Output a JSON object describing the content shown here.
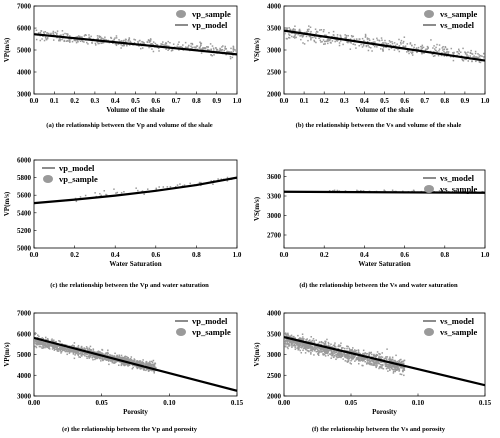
{
  "chart_data": [
    {
      "id": "a",
      "type": "scatter",
      "caption": "(a) the relationship between the Vp and  volume of the shale",
      "xlabel": "Volume of the shale",
      "ylabel": "VP(m/s)",
      "xlim": [
        0,
        1.0
      ],
      "ylim": [
        3000,
        7000
      ],
      "xticks": [
        "0.0",
        "0.1",
        "0.2",
        "0.3",
        "0.4",
        "0.5",
        "0.6",
        "0.7",
        "0.8",
        "0.9",
        "1.0"
      ],
      "yticks": [
        "3000",
        "4000",
        "5000",
        "6000",
        "7000"
      ],
      "legend": {
        "position": "top-right",
        "order": [
          "sample",
          "model"
        ]
      },
      "series": [
        {
          "name": "vp_sample",
          "kind": "scatter",
          "color": "#9a9a9a",
          "x_range": [
            0,
            1.0
          ],
          "trend": [
            [
              0,
              5700
            ],
            [
              1.0,
              4920
            ]
          ],
          "spread": 230,
          "count": 460
        },
        {
          "name": "vp_model",
          "kind": "line",
          "color": "#000000",
          "points": [
            [
              0,
              5720
            ],
            [
              1.0,
              4800
            ]
          ]
        }
      ]
    },
    {
      "id": "b",
      "type": "scatter",
      "caption": "(b) the relationship between the Vs and  volume of the shale",
      "xlabel": "Volume of the shale",
      "ylabel": "VS(m/s)",
      "xlim": [
        0,
        1.0
      ],
      "ylim": [
        2000,
        4000
      ],
      "xticks": [
        "0.0",
        "0.1",
        "0.2",
        "0.3",
        "0.4",
        "0.5",
        "0.6",
        "0.7",
        "0.8",
        "0.9",
        "1.0"
      ],
      "yticks": [
        "2000",
        "2500",
        "3000",
        "3500",
        "4000"
      ],
      "legend": {
        "position": "top-right",
        "order": [
          "sample",
          "model"
        ]
      },
      "series": [
        {
          "name": "vs_sample",
          "kind": "scatter",
          "color": "#9a9a9a",
          "x_range": [
            0,
            1.0
          ],
          "trend": [
            [
              0,
              3420
            ],
            [
              1.0,
              2830
            ]
          ],
          "spread": 150,
          "count": 460
        },
        {
          "name": "vs_model",
          "kind": "line",
          "color": "#000000",
          "points": [
            [
              0,
              3440
            ],
            [
              1.0,
              2760
            ]
          ]
        }
      ]
    },
    {
      "id": "c",
      "type": "scatter",
      "caption": "(c) the relationship between the Vp and  water saturation",
      "xlabel": "Water Saturation",
      "ylabel": "VP(m/s)",
      "xlim": [
        0,
        1.0
      ],
      "ylim": [
        5000,
        6000
      ],
      "xticks": [
        "0.0",
        "0.2",
        "0.4",
        "0.6",
        "0.8",
        "1.0"
      ],
      "yticks": [
        "5000",
        "5200",
        "5400",
        "5600",
        "5800",
        "6000"
      ],
      "legend": {
        "position": "top-left",
        "order": [
          "model",
          "sample"
        ]
      },
      "series": [
        {
          "name": "vp_model",
          "kind": "curve",
          "color": "#000000",
          "points": [
            [
              0,
              5510
            ],
            [
              0.2,
              5550
            ],
            [
              0.4,
              5595
            ],
            [
              0.6,
              5650
            ],
            [
              0.8,
              5715
            ],
            [
              1.0,
              5800
            ]
          ]
        },
        {
          "name": "vp_sample",
          "kind": "scatter",
          "color": "#9a9a9a",
          "x_range": [
            0.2,
            1.0
          ],
          "trend": [
            [
              0.2,
              5560
            ],
            [
              1.0,
              5790
            ]
          ],
          "spread": 35,
          "count": 55
        }
      ]
    },
    {
      "id": "d",
      "type": "scatter",
      "caption": "(d) the relationship between the Vs and  water saturation",
      "xlabel": "Water Saturation",
      "ylabel": "VS(m/s)",
      "xlim": [
        0,
        1.0
      ],
      "ylim": [
        2500,
        3700
      ],
      "xticks": [
        "0.0",
        "0.2",
        "0.4",
        "0.6",
        "0.8",
        "1.0"
      ],
      "yticks": [
        "2700",
        "3000",
        "3300",
        "3600"
      ],
      "legend": {
        "position": "top-right",
        "order": [
          "model",
          "sample"
        ]
      },
      "series": [
        {
          "name": "vs_model",
          "kind": "line",
          "color": "#000000",
          "points": [
            [
              0,
              3365
            ],
            [
              1.0,
              3350
            ]
          ]
        },
        {
          "name": "vs_sample",
          "kind": "scatter",
          "color": "#9a9a9a",
          "x_range": [
            0.2,
            1.0
          ],
          "trend": [
            [
              0.2,
              3380
            ],
            [
              1.0,
              3365
            ]
          ],
          "spread": 15,
          "count": 45
        }
      ]
    },
    {
      "id": "e",
      "type": "scatter",
      "caption": "(e) the relationship between the Vp and porosity",
      "xlabel": "Porosity",
      "ylabel": "VP(m/s)",
      "xlim": [
        0,
        0.15
      ],
      "ylim": [
        3000,
        7000
      ],
      "xticks": [
        "0.00",
        "0.05",
        "0.10",
        "0.15"
      ],
      "xtick_values": [
        0,
        0.05,
        0.1,
        0.15
      ],
      "yticks": [
        "3000",
        "4000",
        "5000",
        "6000",
        "7000"
      ],
      "legend": {
        "position": "top-right",
        "order": [
          "model",
          "sample"
        ]
      },
      "series": [
        {
          "name": "vp_model",
          "kind": "line",
          "color": "#000000",
          "points": [
            [
              0,
              5800
            ],
            [
              0.15,
              3250
            ]
          ]
        },
        {
          "name": "vp_sample",
          "kind": "scatter",
          "color": "#9a9a9a",
          "x_range": [
            0,
            0.09
          ],
          "trend": [
            [
              0,
              5650
            ],
            [
              0.09,
              4350
            ]
          ],
          "spread": 230,
          "count": 1300
        }
      ]
    },
    {
      "id": "f",
      "type": "scatter",
      "caption": "(f) the relationship between the Vs and  porosity",
      "xlabel": "Porosity",
      "ylabel": "VS(m/s)",
      "xlim": [
        0,
        0.15
      ],
      "ylim": [
        2000,
        4000
      ],
      "xticks": [
        "0.00",
        "0.05",
        "0.10",
        "0.15"
      ],
      "xtick_values": [
        0,
        0.05,
        0.1,
        0.15
      ],
      "yticks": [
        "2000",
        "2500",
        "3000",
        "3500",
        "4000"
      ],
      "legend": {
        "position": "top-right",
        "order": [
          "model",
          "sample"
        ]
      },
      "series": [
        {
          "name": "vs_model",
          "kind": "line",
          "color": "#000000",
          "points": [
            [
              0,
              3420
            ],
            [
              0.15,
              2260
            ]
          ]
        },
        {
          "name": "vs_sample",
          "kind": "scatter",
          "color": "#9a9a9a",
          "x_range": [
            0,
            0.09
          ],
          "trend": [
            [
              0,
              3350
            ],
            [
              0.09,
              2700
            ]
          ],
          "spread": 160,
          "count": 1300
        }
      ]
    }
  ]
}
